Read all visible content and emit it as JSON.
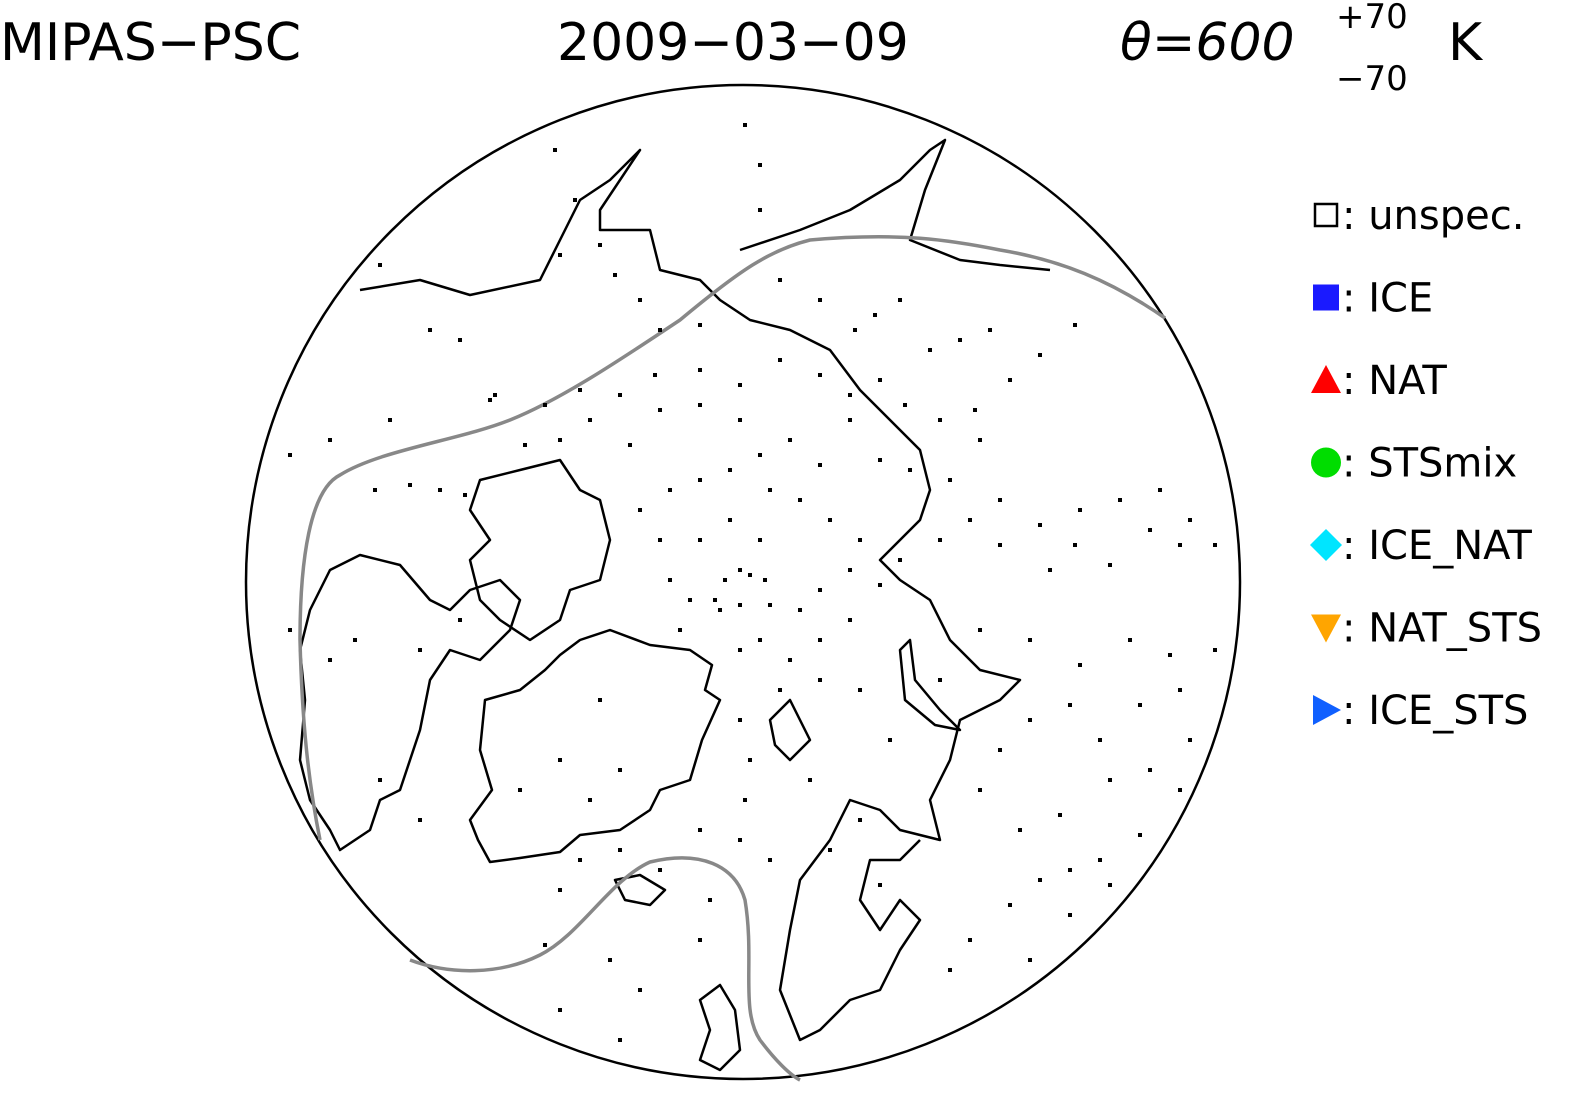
{
  "header": {
    "title": "MIPAS−PSC",
    "date": "2009−03−09",
    "theta": {
      "label": "θ=600",
      "upper": "+70",
      "lower": "−70",
      "unit": "K"
    }
  },
  "legend": {
    "items": [
      {
        "label": ": unspec.",
        "marker": "square-open",
        "color": "#000000"
      },
      {
        "label": ": ICE",
        "marker": "square",
        "color": "#1a1aff"
      },
      {
        "label": ": NAT",
        "marker": "triangle-up",
        "color": "#ff0000"
      },
      {
        "label": ": STSmix",
        "marker": "circle",
        "color": "#00dd00"
      },
      {
        "label": ": ICE_NAT",
        "marker": "diamond",
        "color": "#00e5ff"
      },
      {
        "label": ": NAT_STS",
        "marker": "triangle-down",
        "color": "#ffa500"
      },
      {
        "label": ": ICE_STS",
        "marker": "triangle-right",
        "color": "#1060ff"
      }
    ]
  }
}
